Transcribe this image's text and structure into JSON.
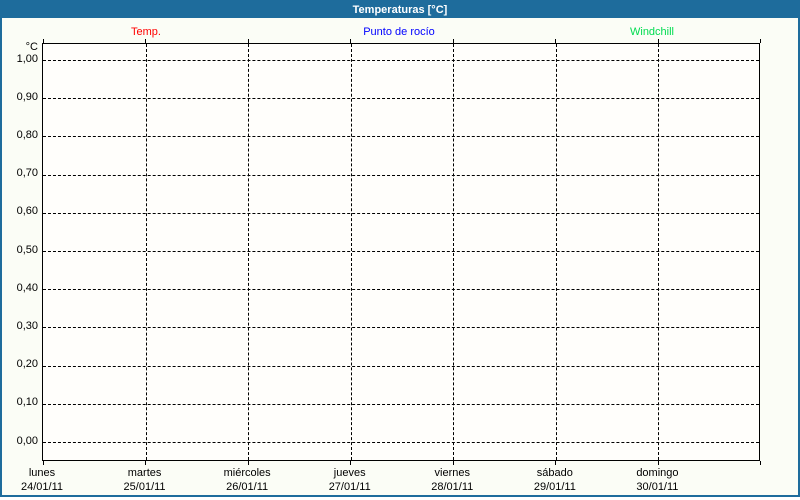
{
  "title_bar": {
    "title": "Temperaturas [°C]"
  },
  "legend": {
    "items": [
      {
        "label": "Temp.",
        "color": "#ff0000"
      },
      {
        "label": "Punto de rocío",
        "color": "#0000ff"
      },
      {
        "label": "Windchill",
        "color": "#00dc50"
      }
    ]
  },
  "y_axis": {
    "unit": "°C",
    "ticks": [
      "1,00",
      "0,90",
      "0,80",
      "0,70",
      "0,60",
      "0,50",
      "0,40",
      "0,30",
      "0,20",
      "0,10",
      "0,00"
    ]
  },
  "x_axis": {
    "days": [
      {
        "day": "lunes",
        "date": "24/01/11"
      },
      {
        "day": "martes",
        "date": "25/01/11"
      },
      {
        "day": "miércoles",
        "date": "26/01/11"
      },
      {
        "day": "jueves",
        "date": "27/01/11"
      },
      {
        "day": "viernes",
        "date": "28/01/11"
      },
      {
        "day": "sábado",
        "date": "29/01/11"
      },
      {
        "day": "domingo",
        "date": "30/01/11"
      }
    ]
  },
  "colors": {
    "frame_blue": "#1e6c9c",
    "temp_red": "#ff0000",
    "dew_point_blue": "#0000ff",
    "windchill_green": "#00dc50",
    "grid_black": "#000000",
    "panel_background": "#fbfdf6",
    "plot_background": "#fffefb"
  },
  "chart_data": {
    "type": "line",
    "title": "Temperaturas [°C]",
    "ylabel": "°C",
    "ylim": [
      0.0,
      1.0
    ],
    "y_tick_step": 0.1,
    "y_tick_labels": [
      "1,00",
      "0,90",
      "0,80",
      "0,70",
      "0,60",
      "0,50",
      "0,40",
      "0,30",
      "0,20",
      "0,10",
      "0,00"
    ],
    "grid": "dashed, both axes",
    "legend_position": "top",
    "x": [
      "24/01/11",
      "25/01/11",
      "26/01/11",
      "27/01/11",
      "28/01/11",
      "29/01/11",
      "30/01/11"
    ],
    "x_day_names": [
      "lunes",
      "martes",
      "miércoles",
      "jueves",
      "viernes",
      "sábado",
      "domingo"
    ],
    "series": [
      {
        "name": "Temp.",
        "color": "#ff0000",
        "values": []
      },
      {
        "name": "Punto de rocío",
        "color": "#0000ff",
        "values": []
      },
      {
        "name": "Windchill",
        "color": "#00dc50",
        "values": []
      }
    ]
  }
}
